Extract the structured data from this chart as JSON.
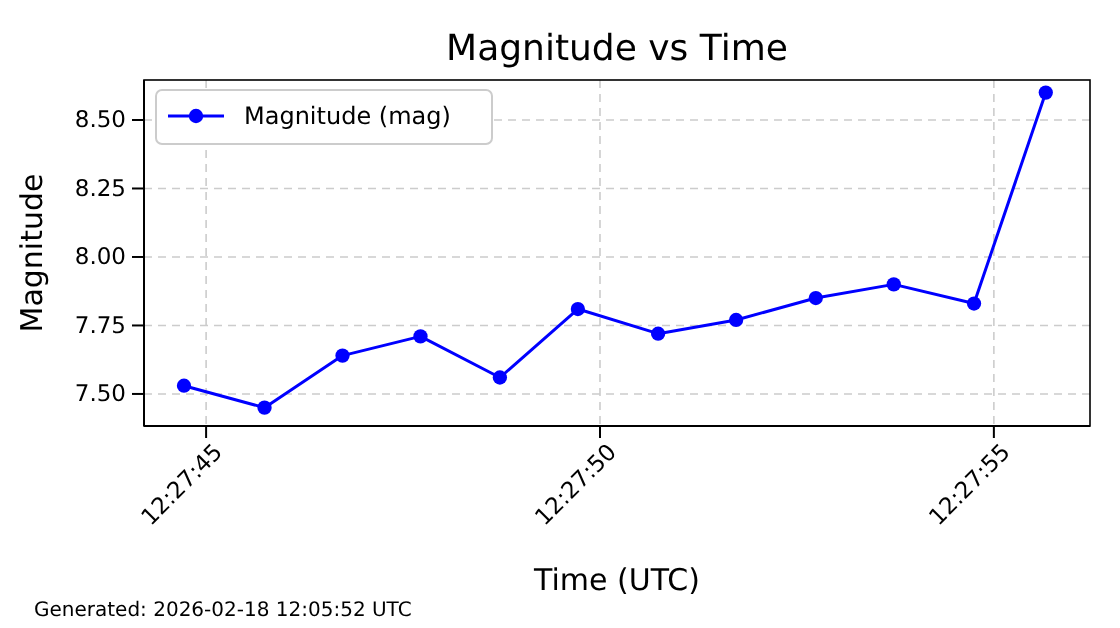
{
  "chart_data": {
    "type": "line",
    "title": "Magnitude vs Time",
    "xlabel": "Time (UTC)",
    "ylabel": "Magnitude",
    "x": [
      12.462422,
      12.462706,
      12.462981,
      12.463256,
      12.463536,
      12.463811,
      12.464094,
      12.464369,
      12.46465,
      12.464925,
      12.465208,
      12.465461
    ],
    "series": [
      {
        "name": "Magnitude (mag)",
        "color": "#0000ff",
        "values": [
          7.53,
          7.45,
          7.64,
          7.71,
          7.56,
          7.81,
          7.72,
          7.77,
          7.85,
          7.9,
          7.83,
          8.6
        ]
      }
    ],
    "xlim": [
      12.462281,
      12.465617
    ],
    "xticks": [
      {
        "value": 12.4625,
        "label": "12:27:45"
      },
      {
        "value": 12.463889,
        "label": "12:27:50"
      },
      {
        "value": 12.465278,
        "label": "12:27:55"
      }
    ],
    "ylim": [
      7.383,
      8.646
    ],
    "yticks": [
      {
        "value": 7.5,
        "label": "7.50"
      },
      {
        "value": 7.75,
        "label": "7.75"
      },
      {
        "value": 8,
        "label": "8.00"
      },
      {
        "value": 8.25,
        "label": "8.25"
      },
      {
        "value": 8.5,
        "label": "8.50"
      }
    ],
    "grid": true,
    "legend": "top left",
    "marker": "circle",
    "line_style": "solid",
    "annotations": [
      "Generated: 2026-02-18 12:05:52 UTC"
    ]
  }
}
